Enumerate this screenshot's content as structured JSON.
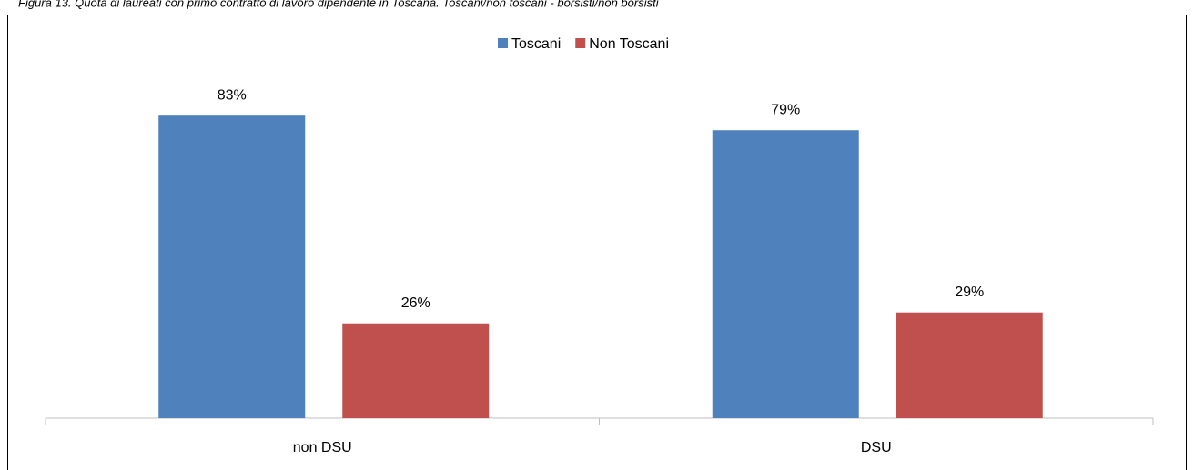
{
  "chart_data": {
    "type": "bar",
    "title": "Figura 13. Quota di laureati con primo contratto di lavoro dipendente in Toscana. Toscani/non toscani - borsisti/non borsisti",
    "categories": [
      "non DSU",
      "DSU"
    ],
    "series": [
      {
        "name": "Toscani",
        "color": "#4f81bd",
        "values": [
          83,
          79
        ],
        "value_labels": [
          "83%",
          "79%"
        ]
      },
      {
        "name": "Non Toscani",
        "color": "#c0504d",
        "values": [
          26,
          29
        ],
        "value_labels": [
          "26%",
          "29%"
        ]
      }
    ],
    "legend": "top"
  }
}
